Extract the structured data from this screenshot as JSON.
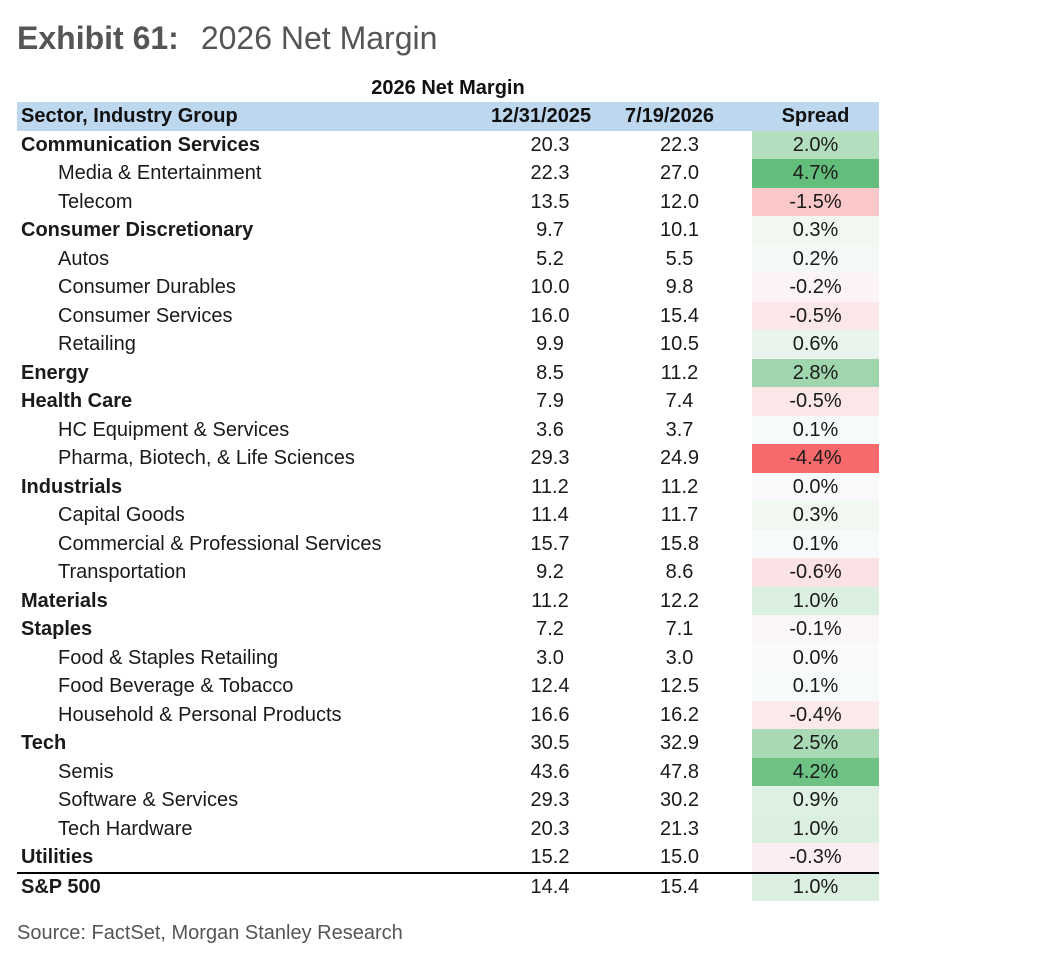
{
  "exhibit": {
    "label": "Exhibit 61:",
    "title": "2026 Net Margin"
  },
  "table": {
    "title": "2026 Net Margin",
    "headers": {
      "name": "Sector, Industry Group",
      "date1": "12/31/2025",
      "date2": "7/19/2026",
      "spread": "Spread"
    },
    "rows": [
      {
        "name": "Communication Services",
        "level": "sector",
        "v1": "20.3",
        "v2": "22.3",
        "spread": "2.0%",
        "color": "#b4dfbe"
      },
      {
        "name": "Media & Entertainment",
        "level": "industry",
        "v1": "22.3",
        "v2": "27.0",
        "spread": "4.7%",
        "color": "#63be7b"
      },
      {
        "name": "Telecom",
        "level": "industry",
        "v1": "13.5",
        "v2": "12.0",
        "spread": "-1.5%",
        "color": "#fbc8ca"
      },
      {
        "name": "Consumer Discretionary",
        "level": "sector",
        "v1": "9.7",
        "v2": "10.1",
        "spread": "0.3%",
        "color": "#f1f8f2"
      },
      {
        "name": "Autos",
        "level": "industry",
        "v1": "5.2",
        "v2": "5.5",
        "spread": "0.2%",
        "color": "#f4f9f5"
      },
      {
        "name": "Consumer Durables",
        "level": "industry",
        "v1": "10.0",
        "v2": "9.8",
        "spread": "-0.2%",
        "color": "#fbf3f5"
      },
      {
        "name": "Consumer Services",
        "level": "industry",
        "v1": "16.0",
        "v2": "15.4",
        "spread": "-0.5%",
        "color": "#fbe6e8"
      },
      {
        "name": "Retailing",
        "level": "industry",
        "v1": "9.9",
        "v2": "10.5",
        "spread": "0.6%",
        "color": "#e9f5ec"
      },
      {
        "name": "Energy",
        "level": "sector",
        "v1": "8.5",
        "v2": "11.2",
        "spread": "2.8%",
        "color": "#a0d6ae"
      },
      {
        "name": "Health Care",
        "level": "sector",
        "v1": "7.9",
        "v2": "7.4",
        "spread": "-0.5%",
        "color": "#fbe6e8"
      },
      {
        "name": "HC Equipment & Services",
        "level": "industry",
        "v1": "3.6",
        "v2": "3.7",
        "spread": "0.1%",
        "color": "#f7fafa"
      },
      {
        "name": "Pharma, Biotech, & Life Sciences",
        "level": "industry",
        "v1": "29.3",
        "v2": "24.9",
        "spread": "-4.4%",
        "color": "#f8696b"
      },
      {
        "name": "Industrials",
        "level": "sector",
        "v1": "11.2",
        "v2": "11.2",
        "spread": "0.0%",
        "color": "#fafafc"
      },
      {
        "name": "Capital Goods",
        "level": "industry",
        "v1": "11.4",
        "v2": "11.7",
        "spread": "0.3%",
        "color": "#f1f8f2"
      },
      {
        "name": "Commercial & Professional Services",
        "level": "industry",
        "v1": "15.7",
        "v2": "15.8",
        "spread": "0.1%",
        "color": "#f7fafa"
      },
      {
        "name": "Transportation",
        "level": "industry",
        "v1": "9.2",
        "v2": "8.6",
        "spread": "-0.6%",
        "color": "#fbe2e4"
      },
      {
        "name": "Materials",
        "level": "sector",
        "v1": "11.2",
        "v2": "12.2",
        "spread": "1.0%",
        "color": "#dcf0e1"
      },
      {
        "name": "Staples",
        "level": "sector",
        "v1": "7.2",
        "v2": "7.1",
        "spread": "-0.1%",
        "color": "#faf6f9"
      },
      {
        "name": "Food & Staples Retailing",
        "level": "industry",
        "v1": "3.0",
        "v2": "3.0",
        "spread": "0.0%",
        "color": "#fafafc"
      },
      {
        "name": "Food Beverage & Tobacco",
        "level": "industry",
        "v1": "12.4",
        "v2": "12.5",
        "spread": "0.1%",
        "color": "#f7fafa"
      },
      {
        "name": "Household & Personal Products",
        "level": "industry",
        "v1": "16.6",
        "v2": "16.2",
        "spread": "-0.4%",
        "color": "#fbeaec"
      },
      {
        "name": "Tech",
        "level": "sector",
        "v1": "30.5",
        "v2": "32.9",
        "spread": "2.5%",
        "color": "#a8d9b4"
      },
      {
        "name": "Semis",
        "level": "industry",
        "v1": "43.6",
        "v2": "47.8",
        "spread": "4.2%",
        "color": "#6ec284"
      },
      {
        "name": "Software & Services",
        "level": "industry",
        "v1": "29.3",
        "v2": "30.2",
        "spread": "0.9%",
        "color": "#dff1e3"
      },
      {
        "name": "Tech Hardware",
        "level": "industry",
        "v1": "20.3",
        "v2": "21.3",
        "spread": "1.0%",
        "color": "#dcf0e1"
      },
      {
        "name": "Utilities",
        "level": "sector",
        "v1": "15.2",
        "v2": "15.0",
        "spread": "-0.3%",
        "color": "#fbeef0"
      },
      {
        "name": "S&P 500",
        "level": "total",
        "v1": "14.4",
        "v2": "15.4",
        "spread": "1.0%",
        "color": "#dcf0e1"
      }
    ]
  },
  "source": "Source: FactSet, Morgan Stanley Research"
}
